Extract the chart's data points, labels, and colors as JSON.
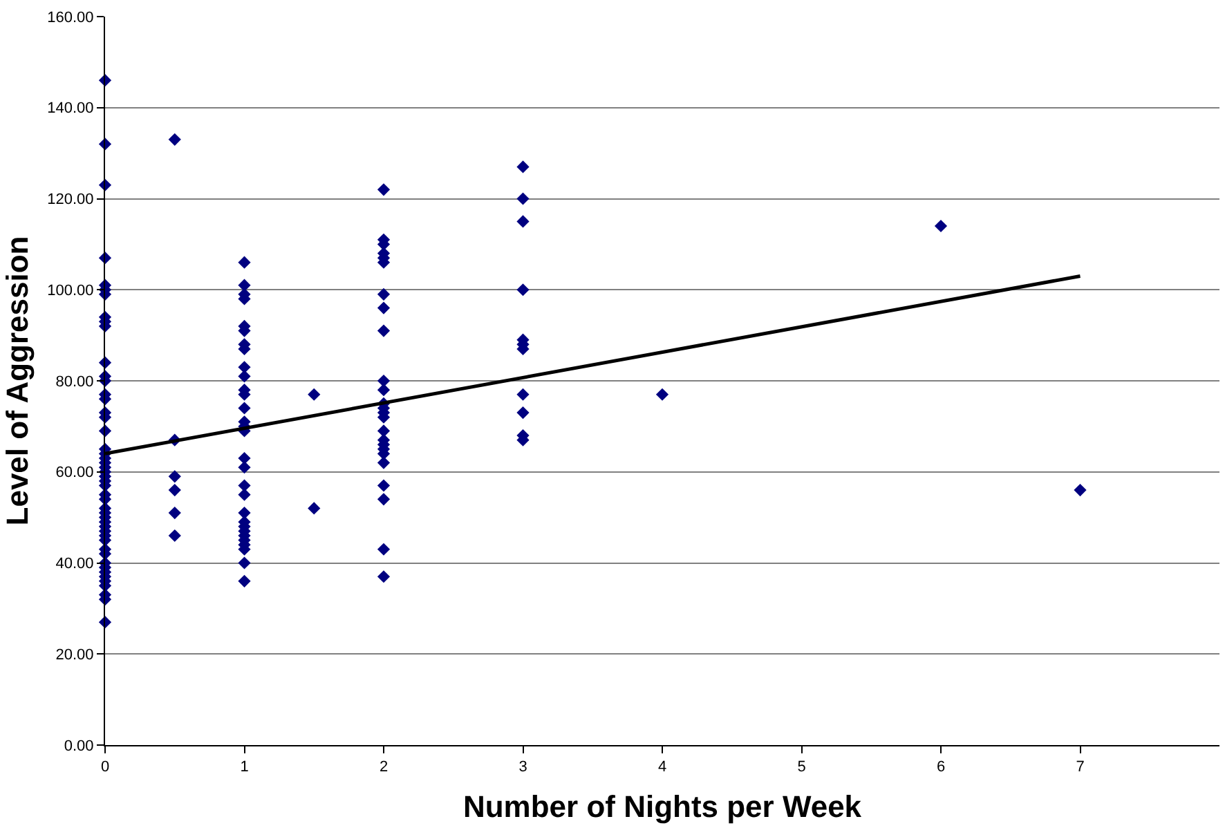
{
  "chart_data": {
    "type": "scatter",
    "xlabel": "Number of Nights per Week",
    "ylabel": "Level of Aggression",
    "xlim": [
      0,
      8
    ],
    "xticks": [
      0,
      1,
      2,
      3,
      4,
      5,
      6,
      7
    ],
    "ylim": [
      0,
      160
    ],
    "yticks": [
      {
        "value": 0,
        "label": "0.00"
      },
      {
        "value": 20,
        "label": "20.00"
      },
      {
        "value": 40,
        "label": "40.00"
      },
      {
        "value": 60,
        "label": "60.00"
      },
      {
        "value": 80,
        "label": "80.00"
      },
      {
        "value": 100,
        "label": "100.00"
      },
      {
        "value": 120,
        "label": "120.00"
      },
      {
        "value": 140,
        "label": "140.00"
      },
      {
        "value": 160,
        "label": "160.00"
      }
    ],
    "grid": "y",
    "marker": "diamond",
    "series": [
      {
        "color": "#000080",
        "x": [
          0,
          0,
          0,
          0,
          0,
          0,
          0,
          0,
          0,
          0,
          0,
          0,
          0,
          0,
          0,
          0,
          0,
          0,
          0,
          0,
          0,
          0,
          0,
          0,
          0,
          0,
          0,
          0,
          0,
          0,
          0,
          0,
          0,
          0,
          0,
          0,
          0,
          0,
          0,
          0,
          0,
          0,
          0,
          0,
          0,
          0,
          0,
          0,
          0.5,
          0.5,
          0.5,
          0.5,
          0.5,
          0.5,
          1,
          1,
          1,
          1,
          1,
          1,
          1,
          1,
          1,
          1,
          1,
          1,
          1,
          1,
          1,
          1,
          1,
          1,
          1,
          1,
          1,
          1,
          1,
          1,
          1,
          1,
          1,
          1,
          1,
          1,
          1.5,
          1.5,
          2,
          2,
          2,
          2,
          2,
          2,
          2,
          2,
          2,
          2,
          2,
          2,
          2,
          2,
          2,
          2,
          2,
          2,
          2,
          2,
          2,
          2,
          2,
          2,
          2,
          3,
          3,
          3,
          3,
          3,
          3,
          3,
          3,
          3,
          3,
          3,
          4,
          6,
          7
        ],
        "values": [
          146,
          132,
          123,
          107,
          101,
          100,
          99,
          94,
          93,
          92,
          84,
          81,
          80,
          77,
          76,
          73,
          72,
          69,
          65,
          64,
          63,
          62,
          61,
          60,
          59,
          58,
          57,
          55,
          54,
          52,
          51,
          50,
          49,
          48,
          47,
          46,
          45,
          43,
          42,
          40,
          39,
          38,
          37,
          36,
          35,
          33,
          32,
          27,
          133,
          67,
          59,
          56,
          51,
          46,
          106,
          101,
          99,
          98,
          92,
          91,
          88,
          87,
          83,
          81,
          78,
          77,
          74,
          71,
          70,
          69,
          63,
          61,
          57,
          55,
          51,
          49,
          48,
          47,
          46,
          45,
          44,
          43,
          40,
          36,
          77,
          52,
          122,
          111,
          110,
          108,
          107,
          106,
          99,
          96,
          91,
          80,
          78,
          75,
          74,
          73,
          72,
          69,
          67,
          66,
          65,
          64,
          62,
          57,
          54,
          43,
          37,
          127,
          120,
          115,
          100,
          89,
          88,
          87,
          77,
          73,
          68,
          67,
          77,
          114,
          56
        ]
      },
      {
        "type": "line",
        "color": "#000000",
        "marker": "none",
        "x": [
          0,
          7
        ],
        "values": [
          64,
          103
        ]
      }
    ]
  }
}
